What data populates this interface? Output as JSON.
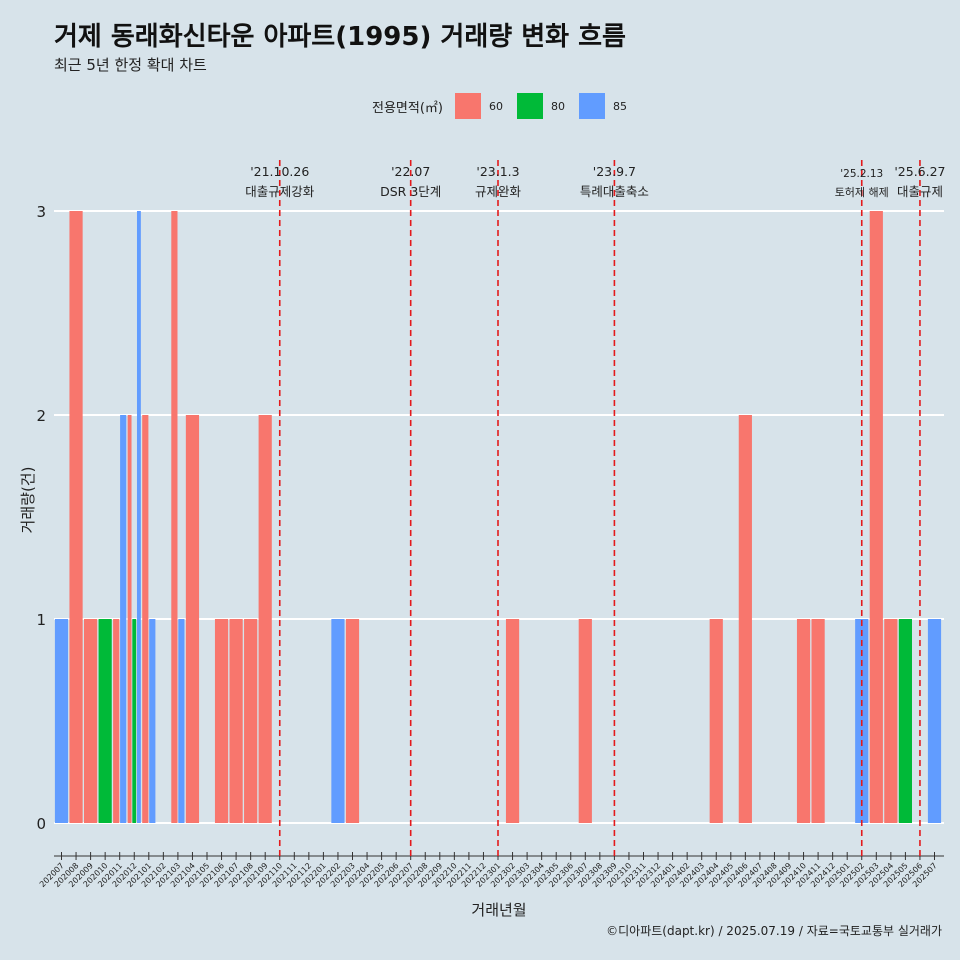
{
  "title": "거제 동래화신타운 아파트(1995) 거래량 변화 흐름",
  "subtitle": "최근 5년 한정 확대 차트",
  "legend": {
    "title": "전용면적(㎡)",
    "items": [
      {
        "label": "60",
        "color": "#f8766d"
      },
      {
        "label": "80",
        "color": "#00ba38"
      },
      {
        "label": "85",
        "color": "#619cff"
      }
    ]
  },
  "caption": "©디아파트(dapt.kr) / 2025.07.19 / 자료=국토교통부 실거래가",
  "chart_data": {
    "type": "bar",
    "xlabel": "거래년월",
    "ylabel": "거래량(건)",
    "ylim": [
      0,
      3
    ],
    "yticks": [
      0,
      1,
      2,
      3
    ],
    "grid": true,
    "legend_position": "top",
    "categories": [
      "202007",
      "202008",
      "202009",
      "202010",
      "202011",
      "202012",
      "202101",
      "202102",
      "202103",
      "202104",
      "202105",
      "202106",
      "202107",
      "202108",
      "202109",
      "202110",
      "202111",
      "202112",
      "202201",
      "202202",
      "202203",
      "202204",
      "202205",
      "202206",
      "202207",
      "202208",
      "202209",
      "202210",
      "202211",
      "202212",
      "202301",
      "202302",
      "202303",
      "202304",
      "202305",
      "202306",
      "202307",
      "202308",
      "202309",
      "202310",
      "202311",
      "202312",
      "202401",
      "202402",
      "202403",
      "202404",
      "202405",
      "202406",
      "202407",
      "202408",
      "202409",
      "202410",
      "202411",
      "202412",
      "202501",
      "202502",
      "202503",
      "202504",
      "202505",
      "202506",
      "202507"
    ],
    "bars": [
      {
        "category": "202007",
        "groups": [
          {
            "series": "85",
            "value": 1
          }
        ]
      },
      {
        "category": "202008",
        "groups": [
          {
            "series": "60",
            "value": 3
          }
        ]
      },
      {
        "category": "202009",
        "groups": [
          {
            "series": "60",
            "value": 1
          }
        ]
      },
      {
        "category": "202010",
        "groups": [
          {
            "series": "80",
            "value": 1
          }
        ]
      },
      {
        "category": "202011",
        "groups": [
          {
            "series": "60",
            "value": 1
          },
          {
            "series": "85",
            "value": 2
          }
        ]
      },
      {
        "category": "202012",
        "groups": [
          {
            "series": "60",
            "value": 2
          },
          {
            "series": "80",
            "value": 1
          },
          {
            "series": "85",
            "value": 3
          }
        ]
      },
      {
        "category": "202101",
        "groups": [
          {
            "series": "60",
            "value": 2
          },
          {
            "series": "85",
            "value": 1
          }
        ]
      },
      {
        "category": "202103",
        "groups": [
          {
            "series": "60",
            "value": 3
          },
          {
            "series": "85",
            "value": 1
          }
        ]
      },
      {
        "category": "202104",
        "groups": [
          {
            "series": "60",
            "value": 2
          }
        ]
      },
      {
        "category": "202106",
        "groups": [
          {
            "series": "60",
            "value": 1
          }
        ]
      },
      {
        "category": "202107",
        "groups": [
          {
            "series": "60",
            "value": 1
          }
        ]
      },
      {
        "category": "202108",
        "groups": [
          {
            "series": "60",
            "value": 1
          }
        ]
      },
      {
        "category": "202109",
        "groups": [
          {
            "series": "60",
            "value": 2
          }
        ]
      },
      {
        "category": "202202",
        "groups": [
          {
            "series": "85",
            "value": 1
          }
        ]
      },
      {
        "category": "202203",
        "groups": [
          {
            "series": "60",
            "value": 1
          }
        ]
      },
      {
        "category": "202302",
        "groups": [
          {
            "series": "60",
            "value": 1
          }
        ]
      },
      {
        "category": "202307",
        "groups": [
          {
            "series": "60",
            "value": 1
          }
        ]
      },
      {
        "category": "202404",
        "groups": [
          {
            "series": "60",
            "value": 1
          }
        ]
      },
      {
        "category": "202406",
        "groups": [
          {
            "series": "60",
            "value": 2
          }
        ]
      },
      {
        "category": "202410",
        "groups": [
          {
            "series": "60",
            "value": 1
          }
        ]
      },
      {
        "category": "202411",
        "groups": [
          {
            "series": "60",
            "value": 1
          }
        ]
      },
      {
        "category": "202502",
        "groups": [
          {
            "series": "85",
            "value": 1
          }
        ]
      },
      {
        "category": "202503",
        "groups": [
          {
            "series": "60",
            "value": 3
          }
        ]
      },
      {
        "category": "202504",
        "groups": [
          {
            "series": "60",
            "value": 1
          }
        ]
      },
      {
        "category": "202505",
        "groups": [
          {
            "series": "80",
            "value": 1
          }
        ]
      },
      {
        "category": "202507",
        "groups": [
          {
            "series": "85",
            "value": 1
          }
        ]
      }
    ],
    "annotations": [
      {
        "date_label": "'21.10.26",
        "text": "대출규제강화",
        "at": "202110"
      },
      {
        "date_label": "'22.07",
        "text": "DSR 3단계",
        "at": "202207"
      },
      {
        "date_label": "'23.1.3",
        "text": "규제완화",
        "at": "202301"
      },
      {
        "date_label": "'23.9.7",
        "text": "특례대출축소",
        "at": "202309"
      },
      {
        "date_label": "'25.2.13",
        "text": "토허제 해제",
        "at": "202502"
      },
      {
        "date_label": "'25.6.27",
        "text": "대출규제",
        "at": "202506"
      }
    ]
  }
}
